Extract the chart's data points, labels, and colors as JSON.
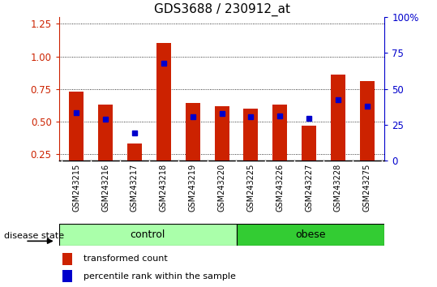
{
  "title": "GDS3688 / 230912_at",
  "samples": [
    "GSM243215",
    "GSM243216",
    "GSM243217",
    "GSM243218",
    "GSM243219",
    "GSM243220",
    "GSM243225",
    "GSM243226",
    "GSM243227",
    "GSM243228",
    "GSM243275"
  ],
  "red_bars": [
    0.73,
    0.63,
    0.33,
    1.1,
    0.64,
    0.62,
    0.6,
    0.63,
    0.47,
    0.86,
    0.81
  ],
  "blue_dots": [
    0.57,
    0.52,
    0.41,
    0.95,
    0.54,
    0.56,
    0.535,
    0.545,
    0.525,
    0.67,
    0.615
  ],
  "ylim_left": [
    0.2,
    1.3
  ],
  "ylim_right": [
    0,
    100
  ],
  "yticks_left": [
    0.25,
    0.5,
    0.75,
    1.0,
    1.25
  ],
  "yticks_right": [
    0,
    25,
    50,
    75,
    100
  ],
  "n_control": 6,
  "n_obese": 5,
  "control_color": "#aaffaa",
  "obese_color": "#33cc33",
  "bar_color": "#cc2200",
  "dot_color": "#0000cc",
  "bar_width": 0.5,
  "label_red": "transformed count",
  "label_blue": "percentile rank within the sample",
  "disease_state_label": "disease state",
  "control_label": "control",
  "obese_label": "obese",
  "tick_bg_color": "#cccccc",
  "title_fontsize": 11
}
